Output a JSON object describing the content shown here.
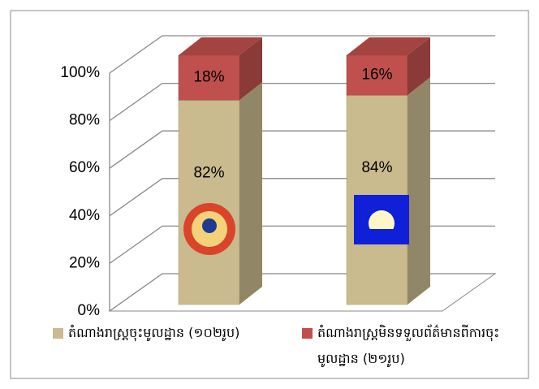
{
  "chart_data": {
    "type": "bar3d_stacked",
    "categories": [
      null,
      null
    ],
    "series": [
      {
        "name": "តំណាងរាស្ត្រចុះមូលដ្ឋាន (១០២រូប)",
        "color": "#c9bb8d",
        "values": [
          82,
          84
        ],
        "value_labels": [
          "82%",
          "84%"
        ]
      },
      {
        "name": "តំណាងរាស្ត្រមិនទទួលព័ត៌មានពីការចុះមូលដ្ឋាន (២១រូប)",
        "color": "#c0504d",
        "values": [
          18,
          16
        ],
        "value_labels": [
          "18%",
          "16%"
        ]
      }
    ],
    "ylim": [
      0,
      100
    ],
    "yticks": [
      {
        "value": 0,
        "label": "0%"
      },
      {
        "value": 20,
        "label": "20%"
      },
      {
        "value": 40,
        "label": "40%"
      },
      {
        "value": 60,
        "label": "60%"
      },
      {
        "value": 80,
        "label": "80%"
      },
      {
        "value": 100,
        "label": "100%"
      }
    ],
    "grid": true
  }
}
